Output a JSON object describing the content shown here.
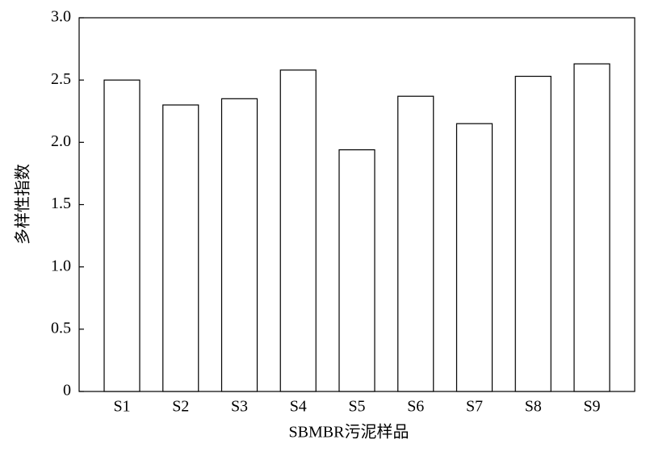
{
  "chart_data": {
    "type": "bar",
    "x_label": "SBMBR污泥样品",
    "y_label": "多样性指数",
    "categories": [
      "S1",
      "S2",
      "S3",
      "S4",
      "S5",
      "S6",
      "S7",
      "S8",
      "S9"
    ],
    "values": [
      2.5,
      2.3,
      2.35,
      2.58,
      1.94,
      2.37,
      2.15,
      2.53,
      2.63
    ],
    "color": "#ffffff",
    "ylim": [
      0,
      3.0
    ],
    "yticks": [
      0,
      0.5,
      {
        "value": 1.0,
        "label": "1.0"
      },
      1.5,
      {
        "value": 2.0,
        "label": "2.0"
      },
      2.5,
      {
        "value": 3.0,
        "label": "3.0"
      }
    ],
    "grid": false
  }
}
